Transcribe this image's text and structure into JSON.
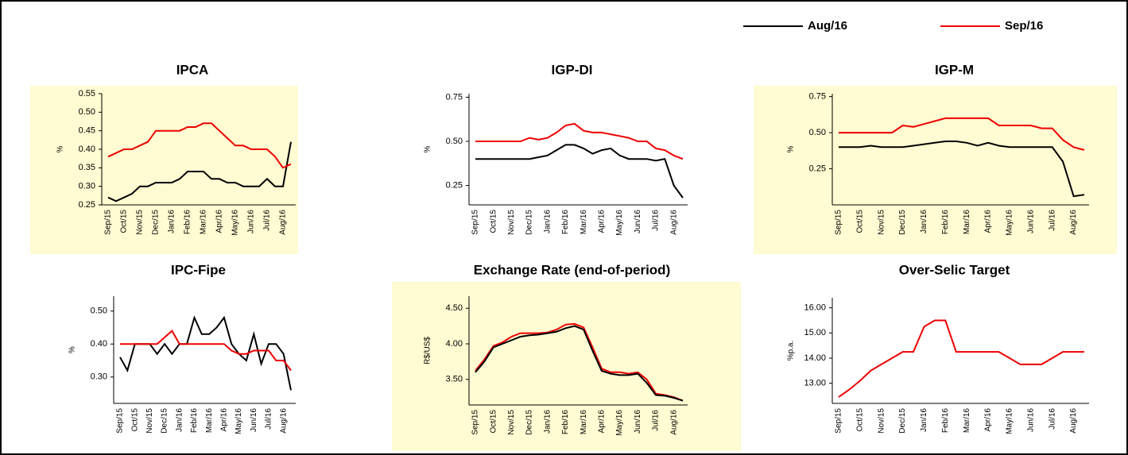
{
  "chart_data": [
    {
      "type": "line",
      "title": "IPCA",
      "y_label": "%",
      "background": "#fffbd2",
      "categories": [
        "Sep/15",
        null,
        "Oct/15",
        null,
        "Nov/15",
        null,
        "Dec/15",
        null,
        "Jan/16",
        null,
        "Feb/16",
        null,
        "Mar/16",
        null,
        "Apr/16",
        null,
        "May/16",
        null,
        "Jun/16",
        null,
        "Jul/16",
        null,
        "Aug/16",
        null
      ],
      "ylim": [
        0.25,
        0.55
      ],
      "yticks": [
        0.25,
        {
          "value": 0.3,
          "label": "0.30"
        },
        0.35,
        {
          "value": 0.4,
          "label": "0.40"
        },
        0.45,
        {
          "value": 0.5,
          "label": "0.50"
        },
        0.55
      ],
      "series": [
        {
          "name": "Aug/16",
          "color": "#000000",
          "values": [
            0.27,
            0.26,
            0.27,
            0.28,
            0.3,
            0.3,
            0.31,
            0.31,
            0.31,
            0.32,
            0.34,
            0.34,
            0.34,
            0.32,
            0.32,
            0.31,
            0.31,
            0.3,
            0.3,
            0.3,
            0.32,
            0.3,
            0.3,
            0.42
          ]
        },
        {
          "name": "Sep/16",
          "color": "#ee0000",
          "values": [
            0.38,
            0.39,
            0.4,
            0.4,
            0.41,
            0.42,
            0.45,
            0.45,
            0.45,
            0.45,
            0.46,
            0.46,
            0.47,
            0.47,
            0.45,
            0.43,
            0.41,
            0.41,
            0.4,
            0.4,
            0.4,
            0.38,
            0.35,
            0.36
          ]
        }
      ]
    },
    {
      "type": "line",
      "title": "IGP-DI",
      "y_label": "%",
      "background": "#ffffff",
      "categories": [
        "Sep/15",
        null,
        "Oct/15",
        null,
        "Nov/15",
        null,
        "Dec/15",
        null,
        "Jan/16",
        null,
        "Feb/16",
        null,
        "Mar/16",
        null,
        "Apr/16",
        null,
        "May/16",
        null,
        "Jun/16",
        null,
        "Jul/16",
        null,
        "Aug/16",
        null
      ],
      "ylim": [
        0.14,
        0.77
      ],
      "yticks": [
        0.25,
        {
          "value": 0.5,
          "label": "0.50"
        },
        0.75
      ],
      "series": [
        {
          "color": "#000000",
          "values": [
            0.4,
            0.4,
            0.4,
            0.4,
            0.4,
            0.4,
            0.4,
            0.41,
            0.42,
            0.45,
            0.48,
            0.48,
            0.46,
            0.43,
            0.45,
            0.46,
            0.42,
            0.4,
            0.4,
            0.4,
            0.39,
            0.4,
            0.25,
            0.18
          ]
        },
        {
          "color": "#ee0000",
          "values": [
            0.5,
            0.5,
            0.5,
            0.5,
            0.5,
            0.5,
            0.52,
            0.51,
            0.52,
            0.55,
            0.59,
            0.6,
            0.56,
            0.55,
            0.55,
            0.54,
            0.53,
            0.52,
            0.5,
            0.5,
            0.46,
            0.45,
            0.42,
            0.4
          ]
        }
      ]
    },
    {
      "type": "line",
      "title": "IGP-M",
      "y_label": "%",
      "background": "#fffbd2",
      "categories": [
        "Sep/15",
        null,
        "Oct/15",
        null,
        "Nov/15",
        null,
        "Dec/15",
        null,
        "Jan/16",
        null,
        "Feb/16",
        null,
        "Mar/16",
        null,
        "Apr/16",
        null,
        "May/16",
        null,
        "Jun/16",
        null,
        "Jul/16",
        null,
        "Aug/16",
        null
      ],
      "ylim": [
        0.0,
        0.77
      ],
      "yticks": [
        0.25,
        {
          "value": 0.5,
          "label": "0.50"
        },
        0.75
      ],
      "series": [
        {
          "color": "#000000",
          "values": [
            0.4,
            0.4,
            0.4,
            0.41,
            0.4,
            0.4,
            0.4,
            0.41,
            0.42,
            0.43,
            0.44,
            0.44,
            0.43,
            0.41,
            0.43,
            0.41,
            0.4,
            0.4,
            0.4,
            0.4,
            0.4,
            0.3,
            0.06,
            0.07
          ]
        },
        {
          "color": "#ee0000",
          "values": [
            0.5,
            0.5,
            0.5,
            0.5,
            0.5,
            0.5,
            0.55,
            0.54,
            0.56,
            0.58,
            0.6,
            0.6,
            0.6,
            0.6,
            0.6,
            0.55,
            0.55,
            0.55,
            0.55,
            0.53,
            0.53,
            0.45,
            0.4,
            0.38
          ]
        }
      ]
    },
    {
      "type": "line",
      "title": "IPC-Fipe",
      "y_label": "%",
      "background": "#ffffff",
      "categories": [
        "Sep/15",
        null,
        "Oct/15",
        null,
        "Nov/15",
        null,
        "Dec/15",
        null,
        "Jan/16",
        null,
        "Feb/16",
        null,
        "Mar/16",
        null,
        "Apr/16",
        null,
        "May/16",
        null,
        "Jun/16",
        null,
        "Jul/16",
        null,
        "Aug/16",
        null
      ],
      "ylim": [
        0.22,
        0.545
      ],
      "yticks": [
        {
          "value": 0.3,
          "label": "0.30"
        },
        {
          "value": 0.4,
          "label": "0.40"
        },
        {
          "value": 0.5,
          "label": "0.50"
        }
      ],
      "series": [
        {
          "color": "#000000",
          "values": [
            0.36,
            0.32,
            0.4,
            0.4,
            0.4,
            0.37,
            0.4,
            0.37,
            0.4,
            0.4,
            0.48,
            0.43,
            0.43,
            0.45,
            0.48,
            0.4,
            0.37,
            0.35,
            0.43,
            0.34,
            0.4,
            0.4,
            0.37,
            0.26
          ]
        },
        {
          "color": "#ee0000",
          "values": [
            0.4,
            0.4,
            0.4,
            0.4,
            0.4,
            0.4,
            0.42,
            0.44,
            0.4,
            0.4,
            0.4,
            0.4,
            0.4,
            0.4,
            0.4,
            0.38,
            0.37,
            0.37,
            0.38,
            0.38,
            0.38,
            0.35,
            0.35,
            0.32
          ]
        }
      ]
    },
    {
      "type": "line",
      "title": "Exchange Rate (end-of-period)",
      "y_label": "R$/US$",
      "background": "#fffbd2",
      "categories": [
        "Sep/15",
        null,
        "Oct/15",
        null,
        "Nov/15",
        null,
        "Dec/15",
        null,
        "Jan/16",
        null,
        "Feb/16",
        null,
        "Mar/16",
        null,
        "Apr/16",
        null,
        "May/16",
        null,
        "Jun/16",
        null,
        "Jul/16",
        null,
        "Aug/16",
        null
      ],
      "ylim": [
        3.14,
        4.67
      ],
      "yticks": [
        {
          "value": 3.5,
          "label": "3.50"
        },
        {
          "value": 4.0,
          "label": "4.00"
        },
        {
          "value": 4.5,
          "label": "4.50"
        }
      ],
      "series": [
        {
          "color": "#ee0000",
          "values": [
            3.62,
            3.78,
            3.97,
            4.02,
            4.1,
            4.15,
            4.15,
            4.15,
            4.16,
            4.2,
            4.27,
            4.28,
            4.23,
            3.95,
            3.65,
            3.6,
            3.6,
            3.58,
            3.6,
            3.5,
            3.3,
            3.28,
            3.25,
            3.2
          ]
        },
        {
          "color": "#000000",
          "values": [
            3.6,
            3.75,
            3.95,
            4.0,
            4.05,
            4.1,
            4.12,
            4.13,
            4.15,
            4.17,
            4.22,
            4.25,
            4.2,
            3.9,
            3.62,
            3.58,
            3.56,
            3.56,
            3.58,
            3.45,
            3.28,
            3.27,
            3.24,
            3.2
          ]
        }
      ]
    },
    {
      "type": "line",
      "title": "Over-Selic Target",
      "y_label": "%p.a.",
      "background": "#ffffff",
      "categories": [
        "Sep/15",
        null,
        "Oct/15",
        null,
        "Nov/15",
        null,
        "Dec/15",
        null,
        "Jan/16",
        null,
        "Feb/16",
        null,
        "Mar/16",
        null,
        "Apr/16",
        null,
        "May/16",
        null,
        "Jun/16",
        null,
        "Jul/16",
        null,
        "Aug/16",
        null
      ],
      "ylim": [
        12.2,
        16.4
      ],
      "yticks": [
        {
          "value": 13,
          "label": "13.00"
        },
        {
          "value": 14,
          "label": "14.00"
        },
        {
          "value": 15,
          "label": "15.00"
        },
        {
          "value": 16,
          "label": "16.00"
        }
      ],
      "series": [
        {
          "color": "#ee0000",
          "values": [
            12.45,
            12.75,
            13.1,
            13.5,
            13.75,
            14.0,
            14.25,
            14.25,
            15.25,
            15.5,
            15.5,
            14.25,
            14.25,
            14.25,
            14.25,
            14.25,
            14.0,
            13.75,
            13.75,
            13.75,
            14.0,
            14.25,
            14.25,
            14.25
          ]
        }
      ]
    }
  ]
}
